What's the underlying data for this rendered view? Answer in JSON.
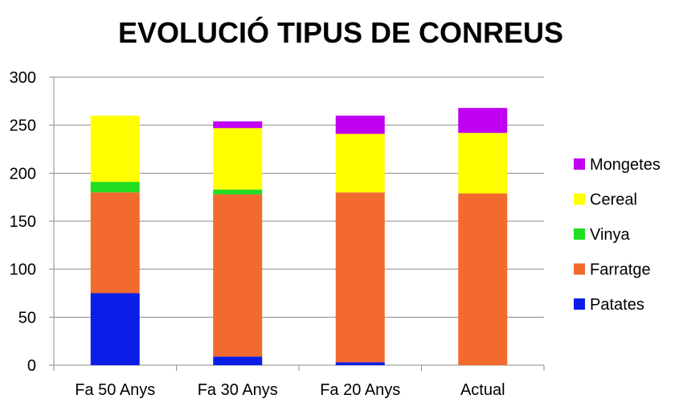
{
  "chart_data": {
    "type": "bar",
    "stacked": true,
    "title": "EVOLUCIÓ TIPUS DE CONREUS",
    "xlabel": "",
    "ylabel": "",
    "ylim": [
      0,
      300
    ],
    "yticks": [
      0,
      50,
      100,
      150,
      200,
      250,
      300
    ],
    "grid": true,
    "legend_position": "right",
    "categories": [
      "Fa 50 Anys",
      "Fa 30 Anys",
      "Fa 20 Anys",
      "Actual"
    ],
    "series": [
      {
        "name": "Patates",
        "color": "#0a1ee8",
        "values": [
          75,
          9,
          3,
          0
        ]
      },
      {
        "name": "Farratge",
        "color": "#f26a2e",
        "values": [
          105,
          169,
          177,
          179
        ]
      },
      {
        "name": "Vinya",
        "color": "#22dd22",
        "values": [
          11,
          5,
          0,
          0
        ]
      },
      {
        "name": "Cereal",
        "color": "#ffff00",
        "values": [
          69,
          64,
          61,
          63
        ]
      },
      {
        "name": "Mongetes",
        "color": "#c000f0",
        "values": [
          0,
          7,
          19,
          26
        ]
      }
    ],
    "legend_order": [
      "Mongetes",
      "Cereal",
      "Vinya",
      "Farratge",
      "Patates"
    ]
  }
}
